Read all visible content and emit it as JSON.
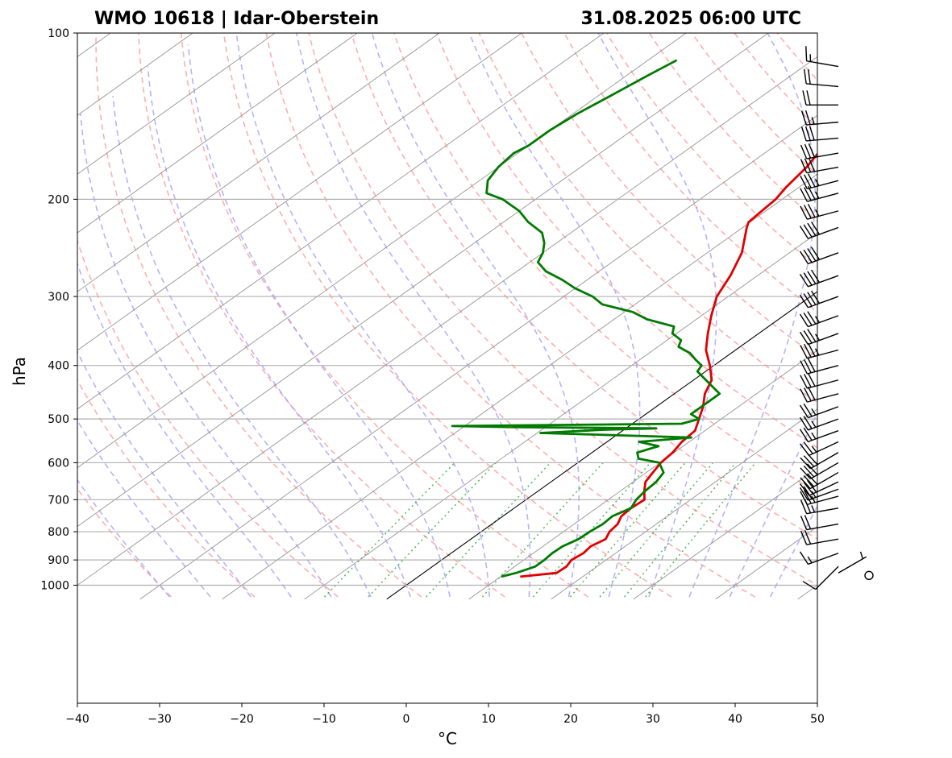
{
  "title_left": "WMO 10618 | Idar-Oberstein",
  "title_right": "31.08.2025 06:00 UTC",
  "chart_data": {
    "type": "skew-t log-p sounding",
    "title": "WMO 10618 | Idar-Oberstein",
    "subtitle": "31.08.2025 06:00 UTC",
    "xlabel": "°C",
    "ylabel": "hPa",
    "xlim": [
      -40,
      50
    ],
    "ylim": [
      1030,
      100
    ],
    "y_scale": "log",
    "x_ticks": [
      -40,
      -30,
      -20,
      -10,
      0,
      10,
      20,
      30,
      40,
      50
    ],
    "y_ticks": [
      1000,
      900,
      800,
      700,
      600,
      500,
      400,
      300,
      200,
      100
    ],
    "grid": true,
    "colors": {
      "temperature": "#e00000",
      "dewpoint": "#007a00",
      "dry_adiabats": "#ff9a9a",
      "moist_adiabats": "#9a9aff",
      "mixing_ratio": "#33aa33",
      "isotherms": "#888888",
      "zero_isotherm": "#000000"
    },
    "series": [
      {
        "kind": "temperature",
        "pressure": [
          965,
          950,
          925,
          900,
          875,
          850,
          825,
          800,
          775,
          750,
          725,
          700,
          675,
          650,
          625,
          600,
          575,
          550,
          525,
          500,
          475,
          450,
          425,
          400,
          375,
          350,
          325,
          300,
          275,
          250,
          225,
          220,
          200,
          190,
          175,
          160,
          150,
          140,
          130,
          125,
          120,
          115,
          112
        ],
        "values": [
          12.4,
          16.2,
          16.3,
          15.8,
          16.1,
          15.8,
          16.4,
          15.6,
          15.3,
          14.4,
          14.2,
          14.4,
          12.9,
          11.5,
          10.8,
          10.1,
          9.8,
          9.1,
          8.8,
          7.3,
          5.7,
          3.7,
          2.2,
          -0.5,
          -3.6,
          -6.2,
          -8.8,
          -11.4,
          -13.3,
          -15.8,
          -19.5,
          -20.2,
          -20.8,
          -21.6,
          -22.5,
          -24.0,
          -25.1,
          -26.2,
          -27.4,
          -28.5,
          -29.0,
          -28.3,
          -28.5
        ]
      },
      {
        "kind": "dewpoint",
        "pressure": [
          965,
          950,
          925,
          900,
          875,
          850,
          825,
          800,
          775,
          750,
          725,
          700,
          675,
          650,
          625,
          600,
          590,
          575,
          560,
          550,
          540,
          530,
          523,
          520,
          517,
          515,
          510,
          500,
          490,
          475,
          450,
          425,
          410,
          400,
          390,
          380,
          370,
          360,
          350,
          340,
          330,
          320,
          310,
          300,
          290,
          280,
          270,
          260,
          250,
          240,
          230,
          220,
          210,
          200,
          195,
          185,
          175,
          165,
          160,
          150,
          140,
          130,
          120,
          112
        ],
        "values": [
          10.1,
          11.3,
          12.5,
          12.5,
          12.3,
          12.4,
          13.1,
          13.2,
          13.5,
          13.3,
          14.2,
          13.4,
          13.0,
          12.8,
          12.1,
          9.9,
          6.7,
          5.5,
          7.0,
          3.9,
          9.5,
          -9.6,
          -2.5,
          3.7,
          -14.8,
          -21.5,
          6.0,
          7.3,
          5.5,
          5.5,
          5.5,
          1.5,
          -1.0,
          -1.5,
          -3.3,
          -5.0,
          -7.5,
          -8.3,
          -10.5,
          -11.5,
          -16.0,
          -19.0,
          -24.0,
          -26.5,
          -30.0,
          -33.0,
          -36.5,
          -39.0,
          -40.0,
          -41.5,
          -43.5,
          -47.0,
          -50.0,
          -54.0,
          -57.0,
          -59.0,
          -60.0,
          -60.5,
          -60.0,
          -60.0,
          -59.5,
          -58.5,
          -57.5,
          -56.5
        ]
      }
    ],
    "wind_barbs": {
      "pressure": [
        960,
        950,
        925,
        875,
        825,
        775,
        725,
        690,
        670,
        650,
        625,
        600,
        575,
        550,
        525,
        500,
        475,
        450,
        425,
        400,
        375,
        350,
        325,
        300,
        275,
        250,
        225,
        210,
        195,
        185,
        175,
        165,
        155,
        145,
        135,
        125,
        115
      ],
      "speed_kt": [
        0,
        5,
        10,
        15,
        20,
        20,
        25,
        25,
        25,
        30,
        30,
        30,
        30,
        25,
        25,
        25,
        25,
        30,
        30,
        30,
        35,
        35,
        35,
        40,
        40,
        40,
        40,
        35,
        35,
        35,
        30,
        30,
        30,
        25,
        20,
        20,
        15
      ],
      "direction_deg": [
        0,
        60,
        225,
        250,
        260,
        260,
        260,
        255,
        250,
        245,
        240,
        240,
        240,
        245,
        250,
        250,
        250,
        255,
        255,
        255,
        255,
        250,
        250,
        250,
        250,
        250,
        250,
        255,
        255,
        255,
        260,
        260,
        265,
        265,
        270,
        275,
        280
      ]
    }
  }
}
